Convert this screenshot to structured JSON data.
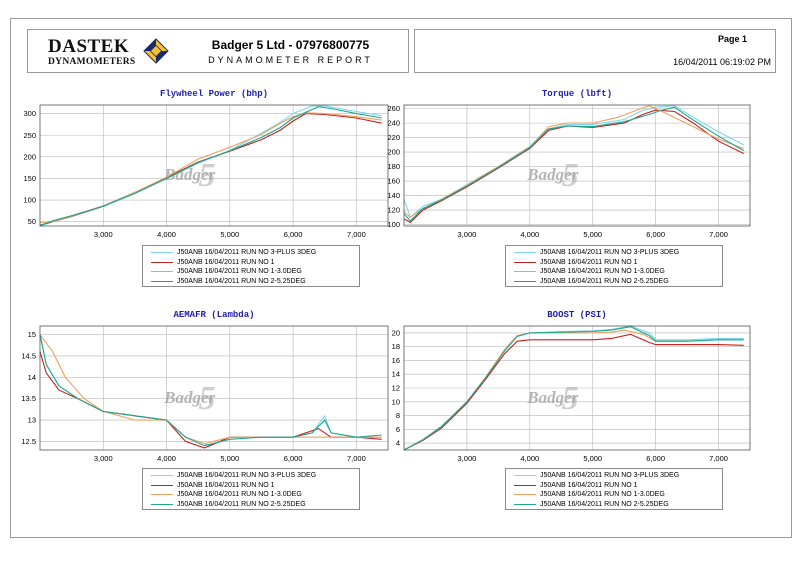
{
  "header": {
    "logo_word": "DASTEK",
    "logo_sub": "DYNAMOMETERS",
    "company": "Badger 5 Ltd - 07976800775",
    "report_title": "DYNAMOMETER REPORT",
    "page_label": "Page 1",
    "date": "16/04/2011 06:19:02 PM"
  },
  "watermark": {
    "text": "Badger",
    "digit": "5"
  },
  "colors": {
    "title": "#1f1fa6",
    "grid": "#b8b8b8",
    "frame": "#9a9a9a"
  },
  "chart_data": [
    {
      "type": "line",
      "title": "Flywheel Power (bhp)",
      "xlim": [
        2000,
        7500
      ],
      "ylim": [
        40,
        320
      ],
      "xticks": [
        3000,
        4000,
        5000,
        6000,
        7000
      ],
      "xtick_labels": [
        "3,000",
        "4,000",
        "5,000",
        "6,000",
        "7,000"
      ],
      "yticks": [
        50,
        100,
        150,
        200,
        250,
        300
      ],
      "ytick_labels": [
        "50",
        "100",
        "150",
        "200",
        "250",
        "300"
      ],
      "grid": true,
      "legend_position": "bottom",
      "series": [
        {
          "name": "J50ANB 16/04/2011 RUN NO 3-PLUS 3DEG",
          "color": "#7fd6ee",
          "x": [
            2000,
            2200,
            2500,
            3000,
            3500,
            4000,
            4500,
            5000,
            5500,
            5800,
            6000,
            6300,
            6500,
            7000,
            7400
          ],
          "y": [
            40,
            50,
            62,
            85,
            115,
            150,
            185,
            215,
            255,
            280,
            300,
            318,
            318,
            305,
            295
          ]
        },
        {
          "name": "J50ANB 16/04/2011 RUN NO 1",
          "color": "#c8201c",
          "x": [
            2000,
            2200,
            2500,
            3000,
            3500,
            4000,
            4500,
            5000,
            5500,
            5800,
            6000,
            6200,
            6500,
            7000,
            7400
          ],
          "y": [
            42,
            50,
            62,
            86,
            117,
            152,
            188,
            213,
            240,
            262,
            283,
            300,
            298,
            290,
            278
          ]
        },
        {
          "name": "J50ANB 16/04/2011 RUN NO 1-3.0DEG",
          "color": "#f0a060",
          "x": [
            2000,
            2200,
            2500,
            3000,
            3500,
            4000,
            4500,
            5000,
            5500,
            5800,
            6000,
            6200,
            6500,
            7000,
            7400
          ],
          "y": [
            48,
            50,
            63,
            87,
            118,
            153,
            195,
            222,
            252,
            278,
            293,
            302,
            300,
            293,
            285
          ]
        },
        {
          "name": "J50ANB 16/04/2011 RUN NO 2-5.25DEG",
          "color": "#1aa890",
          "x": [
            2000,
            2200,
            2500,
            3000,
            3500,
            4000,
            4500,
            5000,
            5500,
            5800,
            6000,
            6400,
            6600,
            7000,
            7400
          ],
          "y": [
            41,
            52,
            64,
            86,
            116,
            150,
            187,
            214,
            245,
            268,
            290,
            316,
            312,
            300,
            290
          ]
        }
      ]
    },
    {
      "type": "line",
      "title": "Torque (lbft)",
      "xlim": [
        2000,
        7500
      ],
      "ylim": [
        98,
        265
      ],
      "xticks": [
        3000,
        4000,
        5000,
        6000,
        7000
      ],
      "xtick_labels": [
        "3,000",
        "4,000",
        "5,000",
        "6,000",
        "7,000"
      ],
      "yticks": [
        100,
        120,
        140,
        160,
        180,
        200,
        220,
        240,
        260
      ],
      "ytick_labels": [
        "100",
        "120",
        "140",
        "160",
        "180",
        "200",
        "220",
        "240",
        "260"
      ],
      "grid": true,
      "legend_position": "bottom",
      "series": [
        {
          "name": "J50ANB 16/04/2011 RUN NO 3-PLUS 3DEG",
          "color": "#7fd6ee",
          "x": [
            2000,
            2100,
            2300,
            2600,
            3000,
            3500,
            4000,
            4300,
            4600,
            5000,
            5500,
            5800,
            6000,
            6300,
            6600,
            7000,
            7400
          ],
          "y": [
            135,
            110,
            125,
            135,
            155,
            180,
            208,
            232,
            238,
            238,
            245,
            258,
            262,
            264,
            248,
            228,
            210
          ]
        },
        {
          "name": "J50ANB 16/04/2011 RUN NO 1",
          "color": "#c8201c",
          "x": [
            2000,
            2100,
            2300,
            2600,
            3000,
            3500,
            4000,
            4300,
            4600,
            5000,
            5500,
            5800,
            6000,
            6300,
            6600,
            7000,
            7400
          ],
          "y": [
            108,
            103,
            120,
            133,
            152,
            178,
            205,
            230,
            236,
            234,
            240,
            252,
            258,
            256,
            240,
            215,
            198
          ]
        },
        {
          "name": "J50ANB 16/04/2011 RUN NO 1-3.0DEG",
          "color": "#f0a060",
          "x": [
            2000,
            2100,
            2300,
            2600,
            3000,
            3500,
            4000,
            4300,
            4600,
            5000,
            5400,
            5700,
            5900,
            6200,
            6600,
            7000,
            7400
          ],
          "y": [
            118,
            110,
            122,
            135,
            154,
            180,
            207,
            235,
            240,
            240,
            248,
            258,
            264,
            252,
            235,
            218,
            205
          ]
        },
        {
          "name": "J50ANB 16/04/2011 RUN NO 2-5.25DEG",
          "color": "#1aa890",
          "x": [
            2000,
            2100,
            2300,
            2600,
            3000,
            3500,
            4000,
            4300,
            4600,
            5000,
            5500,
            5900,
            6100,
            6300,
            6600,
            7000,
            7400
          ],
          "y": [
            115,
            105,
            122,
            134,
            153,
            179,
            206,
            232,
            236,
            235,
            242,
            252,
            258,
            262,
            244,
            222,
            202
          ]
        }
      ]
    },
    {
      "type": "line",
      "title": "AEMAFR (Lambda)",
      "xlim": [
        2000,
        7500
      ],
      "ylim": [
        12.3,
        15.2
      ],
      "xticks": [
        3000,
        4000,
        5000,
        6000,
        7000
      ],
      "xtick_labels": [
        "3,000",
        "4,000",
        "5,000",
        "6,000",
        "7,000"
      ],
      "yticks": [
        12.5,
        13,
        13.5,
        14,
        14.5,
        15
      ],
      "ytick_labels": [
        "12.5",
        "13",
        "13.5",
        "14",
        "14.5",
        "15"
      ],
      "grid": true,
      "legend_position": "bottom",
      "series": [
        {
          "name": "J50ANB 16/04/2011 RUN NO 3-PLUS 3DEG",
          "color": "#7fd6ee",
          "x": [
            2000,
            2100,
            2300,
            2600,
            3000,
            3500,
            4000,
            4300,
            4700,
            5000,
            5500,
            6000,
            6300,
            6500,
            6600,
            7000,
            7400
          ],
          "y": [
            15.0,
            14.3,
            13.8,
            13.5,
            13.2,
            13.1,
            13.0,
            12.6,
            12.4,
            12.6,
            12.6,
            12.6,
            12.7,
            13.1,
            12.7,
            12.6,
            12.6
          ]
        },
        {
          "name": "J50ANB 16/04/2011 RUN NO 1",
          "color": "#c8201c",
          "x": [
            2000,
            2100,
            2300,
            2600,
            3000,
            3500,
            4000,
            4300,
            4600,
            5000,
            5500,
            6000,
            6400,
            6600,
            7000,
            7400
          ],
          "y": [
            14.6,
            14.1,
            13.7,
            13.5,
            13.2,
            13.1,
            13.0,
            12.5,
            12.35,
            12.6,
            12.6,
            12.6,
            12.8,
            12.6,
            12.6,
            12.55
          ]
        },
        {
          "name": "J50ANB 16/04/2011 RUN NO 1-3.0DEG",
          "color": "#f0a060",
          "x": [
            2000,
            2200,
            2400,
            2700,
            3000,
            3500,
            4000,
            4300,
            4600,
            5000,
            5500,
            6000,
            6400,
            6600,
            7000,
            7400
          ],
          "y": [
            15.0,
            14.6,
            14.0,
            13.5,
            13.2,
            13.0,
            13.0,
            12.6,
            12.45,
            12.6,
            12.6,
            12.6,
            12.6,
            12.6,
            12.6,
            12.6
          ]
        },
        {
          "name": "J50ANB 16/04/2011 RUN NO 2-5.25DEG",
          "color": "#1aa890",
          "x": [
            2000,
            2100,
            2300,
            2600,
            3000,
            3500,
            4000,
            4300,
            4600,
            5000,
            5500,
            6000,
            6300,
            6500,
            6600,
            7000,
            7400
          ],
          "y": [
            15.0,
            14.3,
            13.8,
            13.5,
            13.2,
            13.1,
            13.0,
            12.6,
            12.4,
            12.55,
            12.6,
            12.6,
            12.7,
            13.0,
            12.7,
            12.6,
            12.65
          ]
        }
      ]
    },
    {
      "type": "line",
      "title": "BOOST (PSI)",
      "xlim": [
        2000,
        7500
      ],
      "ylim": [
        3,
        21
      ],
      "xticks": [
        3000,
        4000,
        5000,
        6000,
        7000
      ],
      "xtick_labels": [
        "3,000",
        "4,000",
        "5,000",
        "6,000",
        "7,000"
      ],
      "yticks": [
        4,
        6,
        8,
        10,
        12,
        14,
        16,
        18,
        20
      ],
      "ytick_labels": [
        "4",
        "6",
        "8",
        "10",
        "12",
        "14",
        "16",
        "18",
        "20"
      ],
      "grid": true,
      "legend_position": "bottom",
      "series": [
        {
          "name": "J50ANB 16/04/2011 RUN NO 3-PLUS 3DEG",
          "color": "#7fd6ee",
          "x": [
            2000,
            2300,
            2600,
            3000,
            3300,
            3600,
            3800,
            4000,
            4500,
            5000,
            5300,
            5600,
            5900,
            6000,
            6500,
            7000,
            7400
          ],
          "y": [
            3,
            4.5,
            6.5,
            10,
            13.5,
            17.5,
            19.5,
            20,
            20.2,
            20.3,
            20.5,
            21,
            20,
            19,
            19,
            19.2,
            19.2
          ]
        },
        {
          "name": "J50ANB 16/04/2011 RUN NO 1",
          "color": "#c8201c",
          "x": [
            2000,
            2300,
            2600,
            3000,
            3300,
            3600,
            3800,
            4000,
            4500,
            5000,
            5300,
            5600,
            5900,
            6000,
            6500,
            7000,
            7400
          ],
          "y": [
            3,
            4.4,
            6.2,
            9.8,
            13.3,
            17,
            18.8,
            19,
            19,
            19,
            19.2,
            19.8,
            18.6,
            18.3,
            18.3,
            18.3,
            18.2
          ]
        },
        {
          "name": "J50ANB 16/04/2011 RUN NO 1-3.0DEG",
          "color": "#f0a060",
          "x": [
            2000,
            2300,
            2600,
            3000,
            3300,
            3600,
            3800,
            4000,
            4500,
            5000,
            5300,
            5500,
            5800,
            6000,
            6500,
            7000,
            7400
          ],
          "y": [
            3,
            4.5,
            6.4,
            10,
            13.6,
            17.6,
            19.6,
            20,
            20,
            20,
            20.1,
            20.4,
            19.8,
            18.8,
            18.8,
            19,
            19
          ]
        },
        {
          "name": "J50ANB 16/04/2011 RUN NO 2-5.25DEG",
          "color": "#1aa890",
          "x": [
            2000,
            2300,
            2600,
            3000,
            3300,
            3600,
            3800,
            4000,
            4500,
            5000,
            5300,
            5600,
            5900,
            6000,
            6500,
            7000,
            7400
          ],
          "y": [
            3,
            4.5,
            6.4,
            10,
            13.5,
            17.4,
            19.5,
            20,
            20.1,
            20.2,
            20.4,
            20.9,
            19.6,
            18.8,
            18.8,
            19,
            19
          ]
        }
      ]
    }
  ]
}
